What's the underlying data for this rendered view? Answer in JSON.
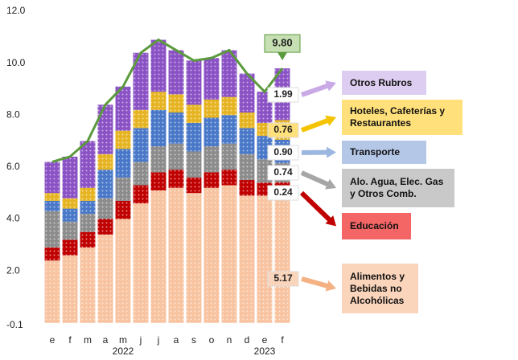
{
  "chart_data": {
    "type": "stacked-bar",
    "categories": [
      "e",
      "f",
      "m",
      "a",
      "m",
      "j",
      "j",
      "a",
      "s",
      "o",
      "n",
      "d",
      "e",
      "f"
    ],
    "year_labels": [
      "2022",
      "2023"
    ],
    "ylim": [
      -0.1,
      12.0
    ],
    "yticks": [
      {
        "value": -0.1,
        "label": "-0.1"
      },
      {
        "value": 2,
        "label": "2.0"
      },
      {
        "value": 4,
        "label": "4.0"
      },
      {
        "value": 6,
        "label": "6.0"
      },
      {
        "value": 8,
        "label": "8.0"
      },
      {
        "value": 10,
        "label": "10.0"
      },
      {
        "value": 12,
        "label": "12.0"
      }
    ],
    "series": [
      {
        "name": "Alimentos y Bebidas no Alcohólicas",
        "color": "#f8c3a0",
        "values": [
          2.4,
          2.6,
          2.9,
          3.4,
          4.0,
          4.6,
          5.1,
          5.2,
          5.0,
          5.2,
          5.3,
          4.9,
          4.9,
          5.17
        ],
        "value_labels": [
          null,
          null,
          null,
          null,
          null,
          null,
          null,
          null,
          null,
          null,
          null,
          null,
          null,
          "5.17"
        ]
      },
      {
        "name": "Educación",
        "color": "#c00000",
        "values": [
          0.5,
          0.6,
          0.6,
          0.6,
          0.7,
          0.7,
          0.7,
          0.7,
          0.6,
          0.6,
          0.6,
          0.6,
          0.5,
          0.24
        ],
        "value_labels": [
          null,
          null,
          null,
          null,
          null,
          null,
          null,
          null,
          null,
          null,
          null,
          null,
          null,
          "0.24"
        ]
      },
      {
        "name": "Alo. Agua, Elec. Gas y Otros Comb.",
        "color": "#8c8c8c",
        "values": [
          1.4,
          0.7,
          0.7,
          0.8,
          0.9,
          0.9,
          1.0,
          1.0,
          1.0,
          1.0,
          1.0,
          1.0,
          0.9,
          0.74
        ],
        "value_labels": [
          null,
          null,
          null,
          null,
          null,
          null,
          null,
          null,
          null,
          null,
          null,
          null,
          null,
          "0.74"
        ]
      },
      {
        "name": "Transporte",
        "color": "#4a78c8",
        "values": [
          0.4,
          0.5,
          0.5,
          1.1,
          1.1,
          1.3,
          1.4,
          1.2,
          1.1,
          1.1,
          1.1,
          1.0,
          0.9,
          0.9
        ],
        "value_labels": [
          null,
          null,
          null,
          null,
          null,
          null,
          null,
          null,
          null,
          null,
          null,
          null,
          null,
          "0.90"
        ]
      },
      {
        "name": "Hoteles, Cafeterías y Restaurantes",
        "color": "#e6b422",
        "values": [
          0.3,
          0.4,
          0.5,
          0.6,
          0.7,
          0.7,
          0.7,
          0.7,
          0.7,
          0.7,
          0.7,
          0.6,
          0.5,
          0.76
        ],
        "value_labels": [
          null,
          null,
          null,
          null,
          null,
          null,
          null,
          null,
          null,
          null,
          null,
          null,
          null,
          "0.76"
        ]
      },
      {
        "name": "Otros Rubros",
        "color": "#8a52c4",
        "values": [
          1.2,
          1.6,
          1.8,
          1.9,
          1.7,
          2.2,
          2.0,
          1.7,
          1.7,
          1.6,
          1.8,
          1.5,
          1.2,
          1.99
        ],
        "value_labels": [
          null,
          null,
          null,
          null,
          null,
          null,
          null,
          null,
          null,
          null,
          null,
          null,
          null,
          "1.99"
        ]
      }
    ],
    "total": {
      "color": "#5b9a3c",
      "values": [
        6.2,
        6.4,
        7.0,
        8.4,
        9.1,
        10.4,
        10.9,
        10.5,
        10.1,
        10.2,
        10.5,
        9.6,
        8.9,
        9.8
      ],
      "value_labels": [
        null,
        null,
        null,
        null,
        null,
        null,
        null,
        null,
        null,
        null,
        null,
        null,
        null,
        "9.80"
      ]
    }
  }
}
